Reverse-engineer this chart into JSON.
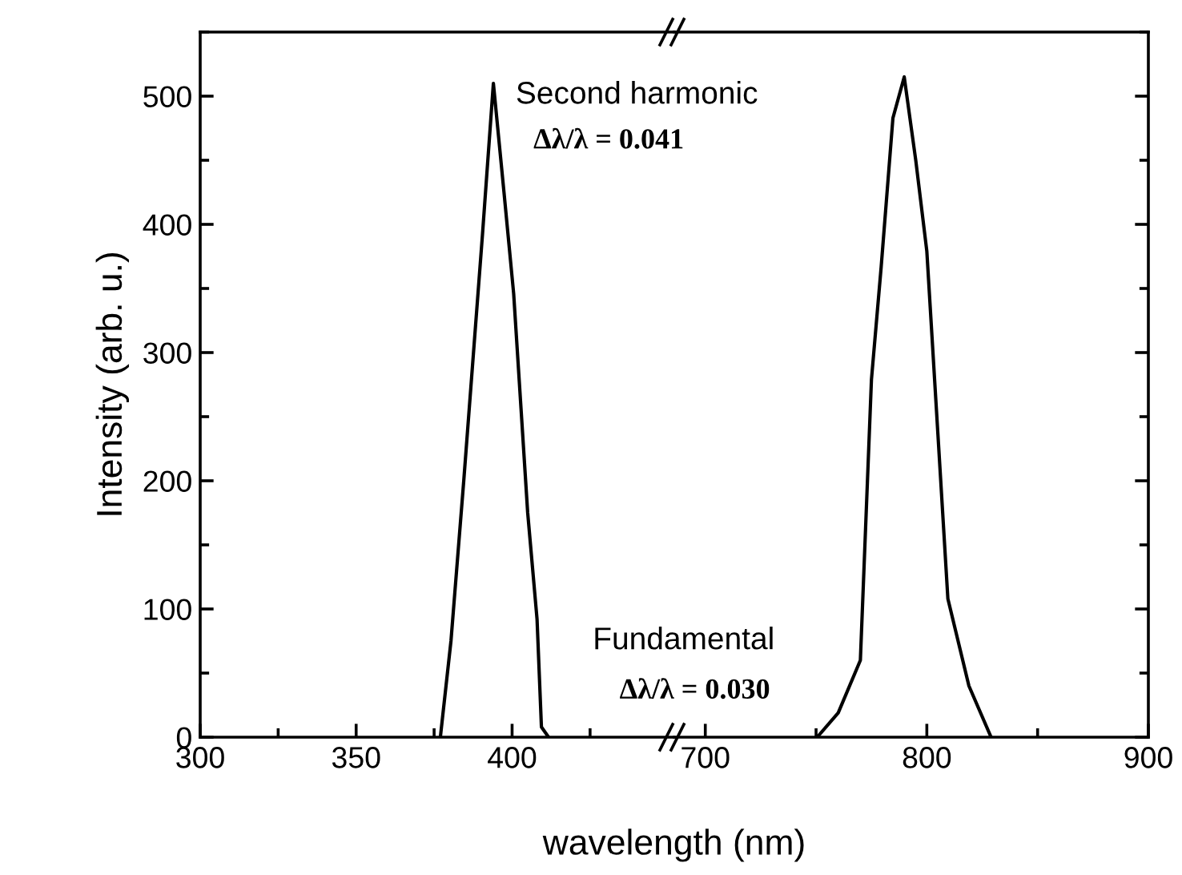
{
  "chart_data": [
    {
      "type": "line",
      "ylabel": "Intensity (arb. u.)",
      "xlabel": "wavelength (nm)",
      "xlim": [
        300,
        452
      ],
      "xticks": [
        300,
        350,
        400
      ],
      "ylim": [
        0,
        550
      ],
      "yticks": [
        0,
        100,
        200,
        300,
        400,
        500
      ],
      "series": [
        {
          "name": "Second harmonic",
          "color": "#000000",
          "x": [
            377,
            380.4,
            384.5,
            390.5,
            394,
            397.4,
            400.5,
            405,
            408,
            409.4,
            411.7
          ],
          "values": [
            0,
            75,
            200,
            392,
            510,
            425,
            346,
            175,
            92,
            8,
            0
          ]
        }
      ],
      "annotations": [
        "Δλ/λ = 0.041"
      ],
      "grid": false,
      "marker": "none",
      "line_style": "solid"
    },
    {
      "type": "line",
      "xlim": [
        686,
        900
      ],
      "xticks": [
        700,
        800,
        900
      ],
      "ylim": [
        0,
        550
      ],
      "yticks": [
        0,
        100,
        200,
        300,
        400,
        500
      ],
      "tick_labels": "x",
      "series": [
        {
          "name": "Fundamental",
          "color": "#000000",
          "x": [
            750.5,
            760,
            770,
            775,
            779.4,
            784.7,
            789.8,
            795,
            800,
            809.5,
            819,
            829
          ],
          "values": [
            0,
            19,
            60,
            279,
            367,
            483,
            515,
            450,
            379,
            108,
            40,
            0
          ]
        }
      ],
      "annotations": [
        "Δλ/λ = 0.030"
      ],
      "grid": false,
      "marker": "none",
      "line_style": "solid"
    }
  ]
}
